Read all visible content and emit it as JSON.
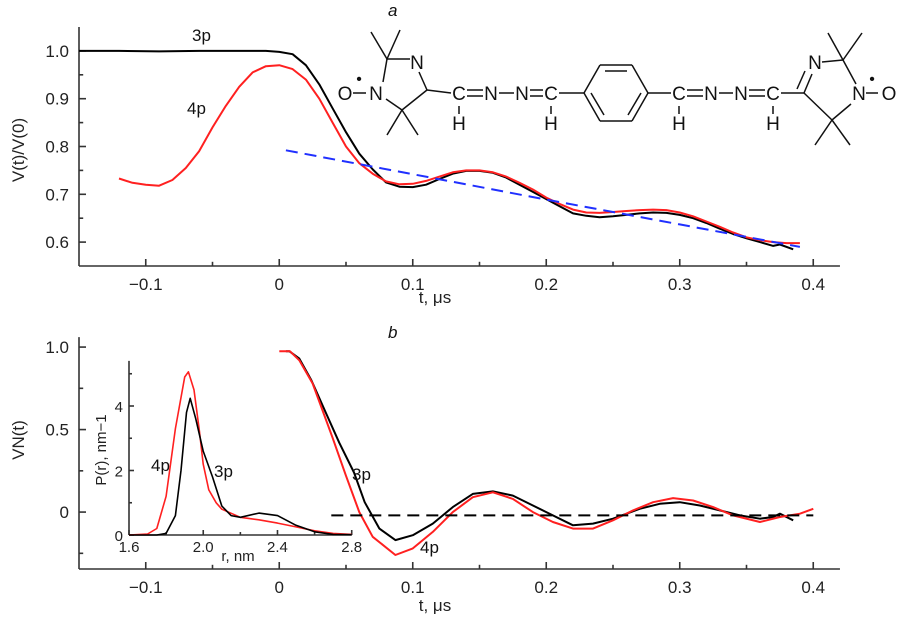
{
  "chart_data": [
    {
      "panel": "a",
      "type": "line",
      "xlabel": "t, μs",
      "ylabel": "V(t)/V(0)",
      "xlim": [
        -0.15,
        0.42
      ],
      "ylim": [
        0.55,
        1.05
      ],
      "xticks": [
        -0.1,
        0,
        0.1,
        0.2,
        0.3,
        0.4
      ],
      "xtick_labels": [
        "−0.1",
        "0",
        "0.1",
        "0.2",
        "0.3",
        "0.4"
      ],
      "yticks": [
        0.6,
        0.7,
        0.8,
        0.9,
        1.0
      ],
      "ytick_labels": [
        "0.6",
        "0.7",
        "0.8",
        "0.9",
        "1.0"
      ],
      "grid": false,
      "series": [
        {
          "name": "3p",
          "color": "#000000",
          "style": "solid",
          "x": [
            -0.15,
            -0.12,
            -0.09,
            -0.06,
            -0.03,
            -0.01,
            0.0,
            0.01,
            0.02,
            0.03,
            0.04,
            0.05,
            0.06,
            0.07,
            0.08,
            0.09,
            0.1,
            0.11,
            0.12,
            0.13,
            0.14,
            0.15,
            0.16,
            0.17,
            0.18,
            0.19,
            0.2,
            0.21,
            0.22,
            0.23,
            0.24,
            0.25,
            0.26,
            0.27,
            0.28,
            0.29,
            0.3,
            0.31,
            0.32,
            0.33,
            0.34,
            0.35,
            0.36,
            0.37,
            0.375,
            0.385
          ],
          "y": [
            1.0,
            1.0,
            0.999,
            1.0,
            1.0,
            1.0,
            0.998,
            0.993,
            0.97,
            0.93,
            0.88,
            0.83,
            0.785,
            0.752,
            0.725,
            0.716,
            0.715,
            0.72,
            0.732,
            0.743,
            0.749,
            0.749,
            0.745,
            0.735,
            0.72,
            0.705,
            0.69,
            0.675,
            0.66,
            0.655,
            0.652,
            0.654,
            0.657,
            0.66,
            0.662,
            0.661,
            0.657,
            0.65,
            0.64,
            0.628,
            0.617,
            0.608,
            0.6,
            0.592,
            0.595,
            0.585
          ]
        },
        {
          "name": "4p",
          "color": "#ff2020",
          "style": "solid",
          "x": [
            -0.12,
            -0.11,
            -0.1,
            -0.09,
            -0.08,
            -0.07,
            -0.06,
            -0.05,
            -0.04,
            -0.03,
            -0.02,
            -0.01,
            0.0,
            0.01,
            0.02,
            0.03,
            0.04,
            0.05,
            0.06,
            0.07,
            0.08,
            0.09,
            0.1,
            0.11,
            0.12,
            0.13,
            0.14,
            0.15,
            0.16,
            0.17,
            0.18,
            0.19,
            0.2,
            0.21,
            0.22,
            0.23,
            0.24,
            0.25,
            0.26,
            0.27,
            0.28,
            0.29,
            0.3,
            0.31,
            0.32,
            0.33,
            0.34,
            0.35,
            0.36,
            0.37,
            0.38,
            0.39
          ],
          "y": [
            0.733,
            0.724,
            0.72,
            0.718,
            0.73,
            0.755,
            0.79,
            0.84,
            0.885,
            0.925,
            0.955,
            0.968,
            0.97,
            0.962,
            0.94,
            0.9,
            0.85,
            0.8,
            0.765,
            0.743,
            0.727,
            0.721,
            0.722,
            0.728,
            0.737,
            0.746,
            0.75,
            0.75,
            0.746,
            0.737,
            0.724,
            0.71,
            0.693,
            0.68,
            0.668,
            0.662,
            0.661,
            0.663,
            0.665,
            0.667,
            0.668,
            0.667,
            0.662,
            0.654,
            0.643,
            0.632,
            0.62,
            0.61,
            0.604,
            0.6,
            0.598,
            0.598
          ]
        },
        {
          "color": "#2030ff",
          "style": "dashed",
          "x": [
            0.005,
            0.1,
            0.2,
            0.3,
            0.39
          ],
          "y": [
            0.792,
            0.742,
            0.689,
            0.637,
            0.59
          ]
        }
      ],
      "annotations": [
        {
          "text": "3p",
          "color": "#000000"
        },
        {
          "text": "4p",
          "color": "#ff2020"
        }
      ]
    },
    {
      "panel": "b",
      "type": "line",
      "xlabel": "t, μs",
      "ylabel": "VN(t)",
      "xlim": [
        -0.15,
        0.42
      ],
      "ylim": [
        -0.345,
        1.06
      ],
      "xticks": [
        -0.1,
        0,
        0.1,
        0.2,
        0.3,
        0.4
      ],
      "xtick_labels": [
        "−0.1",
        "0",
        "0.1",
        "0.2",
        "0.3",
        "0.4"
      ],
      "yticks": [
        0,
        0.5,
        1.0
      ],
      "ytick_labels": [
        "0",
        "0.5",
        "1.0"
      ],
      "grid": false,
      "series": [
        {
          "name": "3p",
          "color": "#000000",
          "style": "solid",
          "x": [
            0.005,
            0.0075,
            0.015,
            0.024,
            0.035,
            0.045,
            0.056,
            0.064,
            0.075,
            0.087,
            0.1,
            0.115,
            0.13,
            0.145,
            0.16,
            0.175,
            0.19,
            0.2,
            0.22,
            0.235,
            0.25,
            0.27,
            0.285,
            0.3,
            0.315,
            0.33,
            0.345,
            0.36,
            0.37,
            0.375,
            0.385
          ],
          "y": [
            0.975,
            0.975,
            0.93,
            0.8,
            0.6,
            0.42,
            0.24,
            0.06,
            -0.1,
            -0.17,
            -0.14,
            -0.07,
            0.03,
            0.11,
            0.125,
            0.1,
            0.04,
            0.0,
            -0.08,
            -0.07,
            -0.04,
            0.02,
            0.05,
            0.06,
            0.04,
            0.01,
            -0.02,
            -0.04,
            -0.03,
            -0.01,
            -0.05
          ]
        },
        {
          "name": "4p",
          "color": "#ff2020",
          "style": "solid",
          "x": [
            0.0,
            0.008,
            0.015,
            0.025,
            0.04,
            0.05,
            0.06,
            0.07,
            0.087,
            0.1,
            0.115,
            0.13,
            0.145,
            0.16,
            0.175,
            0.19,
            0.205,
            0.22,
            0.235,
            0.25,
            0.265,
            0.28,
            0.295,
            0.31,
            0.325,
            0.34,
            0.36,
            0.375,
            0.39,
            0.4
          ],
          "y": [
            0.975,
            0.975,
            0.92,
            0.78,
            0.45,
            0.22,
            0.0,
            -0.15,
            -0.26,
            -0.22,
            -0.12,
            0.0,
            0.09,
            0.12,
            0.08,
            0.0,
            -0.06,
            -0.1,
            -0.1,
            -0.05,
            0.01,
            0.06,
            0.085,
            0.07,
            0.03,
            -0.02,
            -0.06,
            -0.03,
            -0.01,
            0.02
          ]
        },
        {
          "color": "#000000",
          "style": "dashed",
          "x": [
            0.039,
            0.4
          ],
          "y": [
            -0.02,
            -0.02
          ]
        }
      ],
      "annotations": [
        {
          "text": "3p",
          "color": "#000000"
        },
        {
          "text": "4p",
          "color": "#ff2020"
        }
      ]
    },
    {
      "panel": "b-inset",
      "type": "line",
      "xlabel": "r, nm",
      "ylabel": "P(r), nm−1",
      "xlim": [
        1.6,
        2.8
      ],
      "ylim": [
        0,
        5.4
      ],
      "xticks": [
        1.6,
        2.0,
        2.4,
        2.8
      ],
      "xtick_labels": [
        "1.6",
        "2.0",
        "2.4",
        "2.8"
      ],
      "yticks": [
        0,
        2,
        4
      ],
      "ytick_labels": [
        "0",
        "2",
        "4"
      ],
      "grid": false,
      "series": [
        {
          "name": "4p",
          "color": "#ff2020",
          "x": [
            1.6,
            1.7,
            1.75,
            1.8,
            1.85,
            1.9,
            1.92,
            1.95,
            1.98,
            2.0,
            2.03,
            2.07,
            2.1,
            2.2,
            2.3,
            2.4,
            2.5,
            2.6,
            2.7,
            2.8
          ],
          "y": [
            0,
            0.03,
            0.2,
            1.2,
            3.3,
            4.9,
            5.06,
            4.5,
            3.2,
            2.2,
            1.4,
            1.0,
            0.8,
            0.55,
            0.47,
            0.37,
            0.25,
            0.13,
            0.05,
            0.02
          ]
        },
        {
          "name": "3p",
          "color": "#000000",
          "x": [
            1.6,
            1.75,
            1.8,
            1.85,
            1.88,
            1.91,
            1.93,
            1.96,
            2.0,
            2.05,
            2.1,
            2.15,
            2.2,
            2.3,
            2.4,
            2.5,
            2.6,
            2.7,
            2.8
          ],
          "y": [
            0,
            0,
            0.05,
            0.6,
            2.0,
            3.8,
            4.24,
            3.6,
            2.6,
            1.8,
            0.9,
            0.6,
            0.55,
            0.68,
            0.6,
            0.3,
            0.1,
            0.02,
            0.01
          ]
        }
      ],
      "annotations": [
        {
          "text": "4p",
          "color": "#ff2020"
        },
        {
          "text": "3p",
          "color": "#000000"
        }
      ]
    }
  ],
  "panel_labels": {
    "a": "a",
    "b": "b"
  },
  "molecule": {
    "atoms": [
      "O",
      "N",
      "N",
      "C",
      "N",
      "N",
      "C",
      "H",
      "H",
      "C",
      "N",
      "N",
      "C",
      "H",
      "H",
      "N",
      "N",
      "O"
    ],
    "radical_dot": "•"
  }
}
